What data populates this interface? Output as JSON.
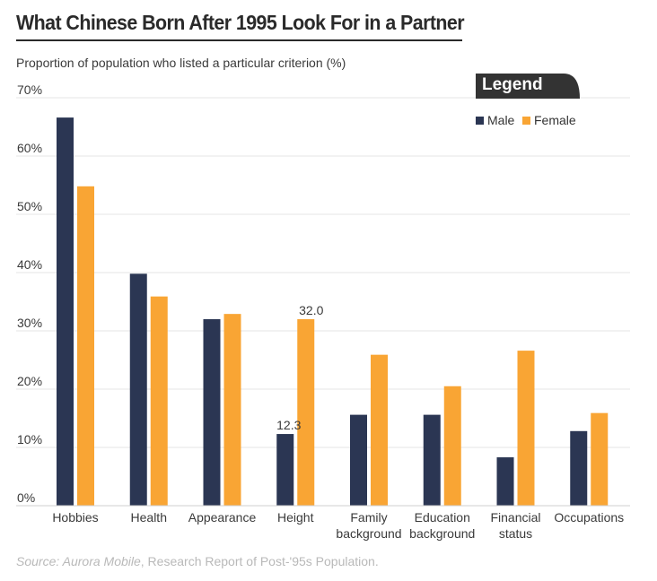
{
  "title": "What Chinese Born After 1995 Look For in a Partner",
  "subtitle": "Proportion of population who listed a particular criterion (%)",
  "source": {
    "label": "Source:  Aurora Mobile",
    "text": ", Research Report of Post-'95s Population."
  },
  "legend": {
    "title": "Legend",
    "position": "top-right"
  },
  "colors": {
    "male": "#2b3653",
    "female": "#f9a534",
    "grid": "#e4e4e4",
    "legend_tab": "#333333",
    "text": "#333333"
  },
  "chart_data": {
    "type": "bar",
    "categories": [
      [
        "Hobbies"
      ],
      [
        "Health"
      ],
      [
        "Appearance"
      ],
      [
        "Height"
      ],
      [
        "Family",
        "background"
      ],
      [
        "Education",
        "background"
      ],
      [
        "Financial",
        "status"
      ],
      [
        "Occupations"
      ]
    ],
    "series": [
      {
        "name": "Male",
        "values": [
          66.6,
          39.8,
          32.0,
          12.3,
          15.6,
          15.6,
          8.3,
          12.8
        ]
      },
      {
        "name": "Female",
        "values": [
          54.8,
          35.9,
          32.9,
          32.0,
          25.9,
          20.5,
          26.6,
          15.9
        ]
      }
    ],
    "data_labels": [
      {
        "series": 0,
        "index": 3,
        "text": "12.3"
      },
      {
        "series": 1,
        "index": 3,
        "text": "32.0"
      }
    ],
    "ylim": [
      0,
      70
    ],
    "yticks": [
      0,
      10,
      20,
      30,
      40,
      50,
      60,
      70
    ],
    "ytick_labels": [
      "0%",
      "10%",
      "20%",
      "30%",
      "40%",
      "50%",
      "60%",
      "70%"
    ],
    "grid": true,
    "xlabel": "",
    "ylabel": ""
  }
}
